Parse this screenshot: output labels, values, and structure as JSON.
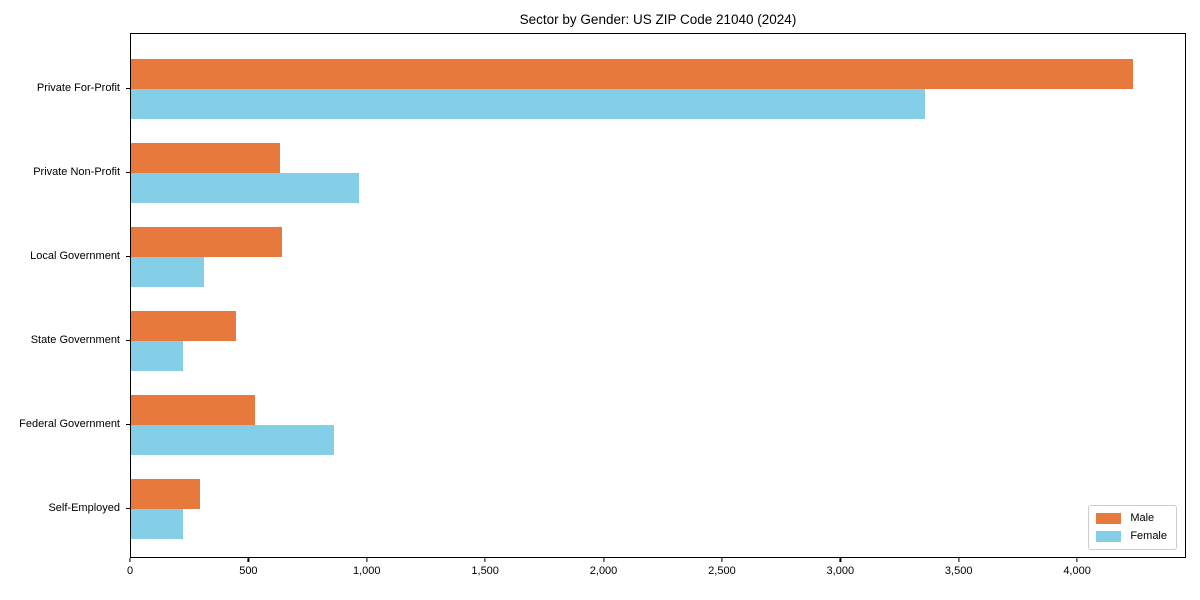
{
  "chart_data": {
    "type": "bar",
    "orientation": "horizontal",
    "title": "Sector by Gender: US ZIP Code 21040 (2024)",
    "categories": [
      "Private For-Profit",
      "Private Non-Profit",
      "Local Government",
      "State Government",
      "Federal Government",
      "Self-Employed"
    ],
    "series": [
      {
        "name": "Male",
        "color": "#e8793c",
        "values": [
          4240,
          630,
          640,
          445,
          525,
          290
        ]
      },
      {
        "name": "Female",
        "color": "#85cee8",
        "values": [
          3360,
          965,
          310,
          220,
          860,
          220
        ]
      }
    ],
    "xlabel": "",
    "ylabel": "",
    "xlim": [
      0,
      4460
    ],
    "xticks": [
      0,
      500,
      1000,
      1500,
      2000,
      2500,
      3000,
      3500,
      4000
    ],
    "xtick_labels": [
      "0",
      "500",
      "1,000",
      "1,500",
      "2,000",
      "2,500",
      "3,000",
      "3,500",
      "4,000"
    ],
    "grid": false,
    "legend_position": "lower right",
    "spine_color": "#000000"
  }
}
